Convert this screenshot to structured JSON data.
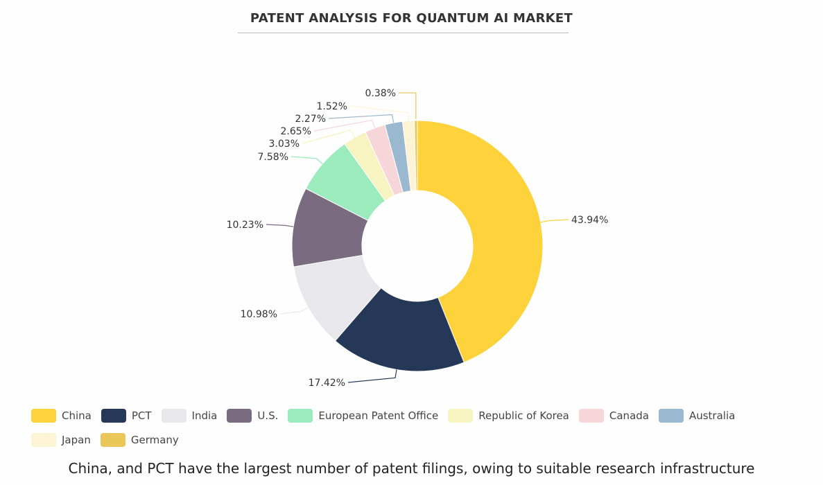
{
  "chart_data": {
    "type": "pie",
    "donut": true,
    "title": "PATENT ANALYSIS FOR QUANTUM AI MARKET",
    "categories": [
      "China",
      "PCT",
      "India",
      "U.S.",
      "European Patent Office",
      "Republic of Korea",
      "Canada",
      "Australia",
      "Japan",
      "Germany"
    ],
    "values": [
      43.94,
      17.42,
      10.98,
      10.23,
      7.58,
      3.03,
      2.65,
      2.27,
      1.52,
      0.38
    ],
    "labels": [
      "43.94%",
      "17.42%",
      "10.98%",
      "10.23%",
      "7.58%",
      "3.03%",
      "2.65%",
      "2.27%",
      "1.52%",
      "0.38%"
    ],
    "colors": [
      "#FDD23A",
      "#253858",
      "#E8E8EC",
      "#7B6B80",
      "#9CEBBD",
      "#F7F4C2",
      "#F6D6D8",
      "#9AB8CF",
      "#FDF3D5",
      "#EBC659"
    ],
    "legend_position": "bottom",
    "start": "top",
    "direction": "clockwise"
  },
  "caption": "China, and PCT have the largest number of patent filings, owing to suitable research infrastructure"
}
